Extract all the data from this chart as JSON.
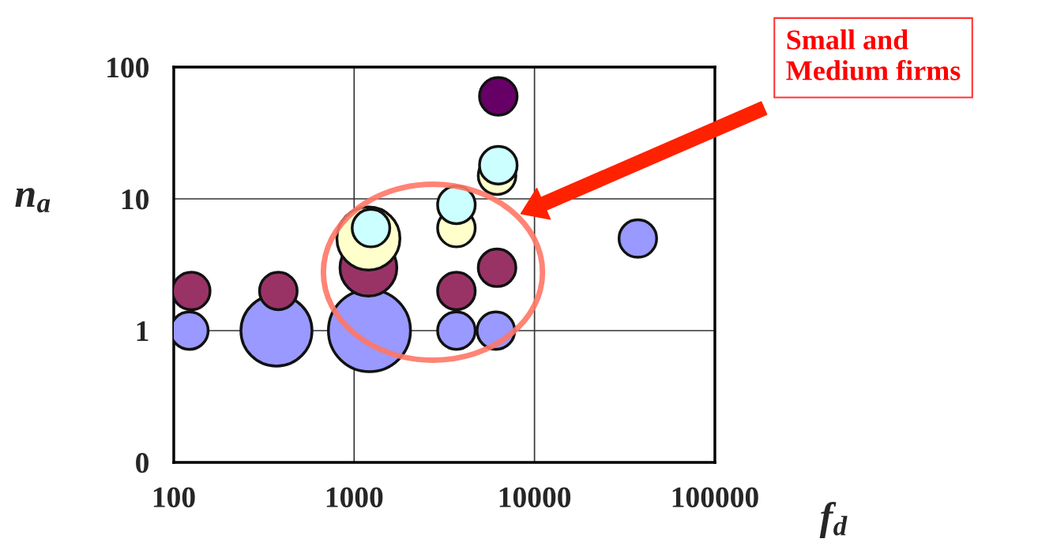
{
  "chart_data": {
    "type": "bubble",
    "xlabel": "f$_{d}$",
    "ylabel": "n$_{a}$",
    "log": "xy",
    "grid": true,
    "xlim": [
      100,
      100000
    ],
    "xticks": [
      100,
      1000,
      10000,
      100000
    ],
    "ylim": [
      0.1,
      100
    ],
    "yticks": [
      {
        "value": 0.1,
        "label": "0"
      },
      1,
      10,
      100
    ],
    "annotations": [
      "Small and\nMedium firms"
    ],
    "series": [
      {
        "color": "#9999ff",
        "x": [
          122,
          371,
          1216,
          3690,
          6110,
          37400
        ],
        "values": [
          1,
          1,
          1,
          1,
          1,
          5
        ],
        "sizes": [
          0.21,
          0.75,
          1,
          0.21,
          0.21,
          0.21
        ]
      },
      {
        "color": "#993366",
        "x": [
          125,
          380,
          1200,
          3690,
          6200
        ],
        "values": [
          2,
          2,
          3,
          2,
          3
        ],
        "sizes": [
          0.21,
          0.21,
          0.48,
          0.21,
          0.21
        ]
      },
      {
        "color": "#ffffcc",
        "x": [
          1200,
          3690,
          6200
        ],
        "values": [
          5,
          6,
          15
        ],
        "sizes": [
          0.59,
          0.21,
          0.21
        ]
      },
      {
        "color": "#ccffff",
        "x": [
          1240,
          3690,
          6300
        ],
        "values": [
          6,
          9,
          18
        ],
        "sizes": [
          0.21,
          0.21,
          0.21
        ]
      },
      {
        "color": "#660066",
        "x": [
          6300
        ],
        "values": [
          60
        ],
        "sizes": [
          0.21
        ]
      }
    ]
  }
}
